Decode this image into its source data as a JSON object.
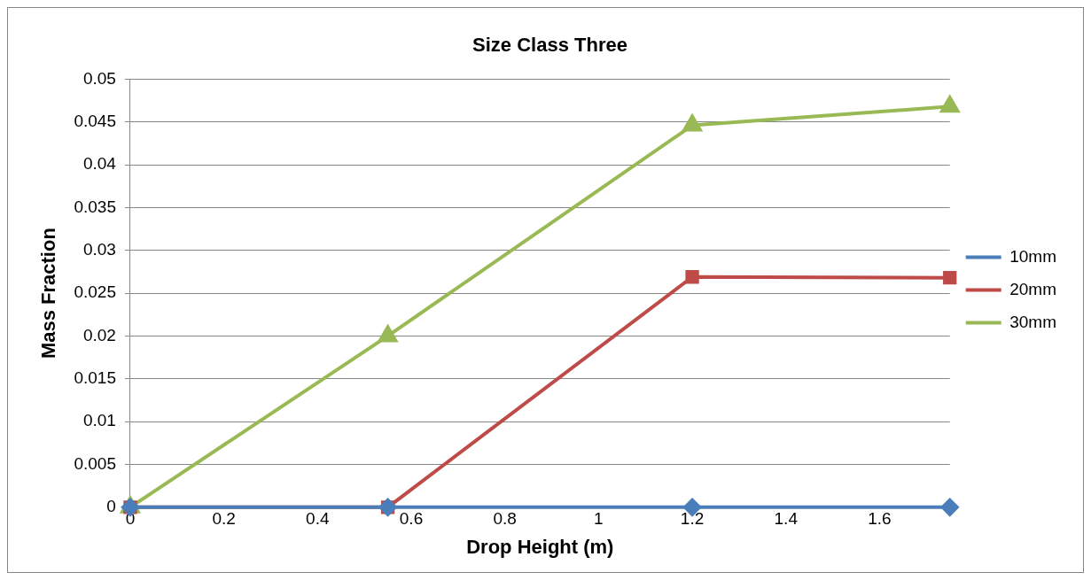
{
  "chart_data": {
    "type": "line",
    "title": "Size Class Three",
    "xlabel": "Drop Height (m)",
    "ylabel": "Mass Fraction",
    "x": [
      0,
      0.55,
      1.2,
      1.75
    ],
    "series": [
      {
        "name": "10mm",
        "color": "#4a7ebb",
        "marker": "diamond",
        "values": [
          0,
          0,
          0,
          0
        ]
      },
      {
        "name": "20mm",
        "color": "#be4b48",
        "marker": "square",
        "values": [
          0,
          0,
          0.0269,
          0.0268
        ]
      },
      {
        "name": "30mm",
        "color": "#98b954",
        "marker": "triangle",
        "values": [
          0,
          0.02,
          0.0446,
          0.0468
        ]
      }
    ],
    "xlim": [
      0,
      1.75
    ],
    "xticks": [
      0,
      0.2,
      0.4,
      0.6,
      0.8,
      1,
      1.2,
      1.4,
      1.6
    ],
    "ylim": [
      0,
      0.05
    ],
    "yticks": [
      0,
      0.005,
      0.01,
      0.015,
      0.02,
      0.025,
      0.03,
      0.035,
      0.04,
      0.045,
      0.05
    ],
    "grid": "y",
    "legend": "right"
  }
}
